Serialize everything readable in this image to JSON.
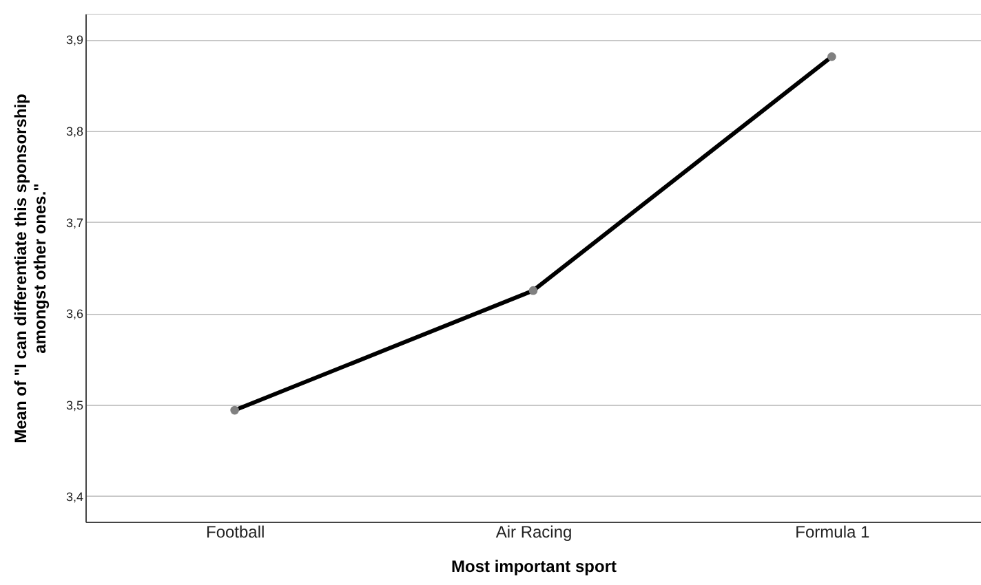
{
  "chart_data": {
    "type": "line",
    "xlabel": "Most important sport",
    "ylabel": "Mean of \"I can differentiate this sponsorship\namongst other ones.\"",
    "categories": [
      "Football",
      "Air Racing",
      "Formula 1"
    ],
    "series": [
      {
        "color": "#000000",
        "values": [
          3.494,
          3.625,
          3.881
        ]
      }
    ],
    "marker": "circle",
    "ylim": [
      3.372,
      3.928
    ],
    "yticks": [
      {
        "value": 3.4,
        "label": "3,4"
      },
      {
        "value": 3.5,
        "label": "3,5"
      },
      {
        "value": 3.6,
        "label": "3,6"
      },
      {
        "value": 3.7,
        "label": "3,7"
      },
      {
        "value": 3.8,
        "label": "3,8"
      },
      {
        "value": 3.9,
        "label": "3,9"
      }
    ],
    "grid": "y",
    "legend": false
  }
}
